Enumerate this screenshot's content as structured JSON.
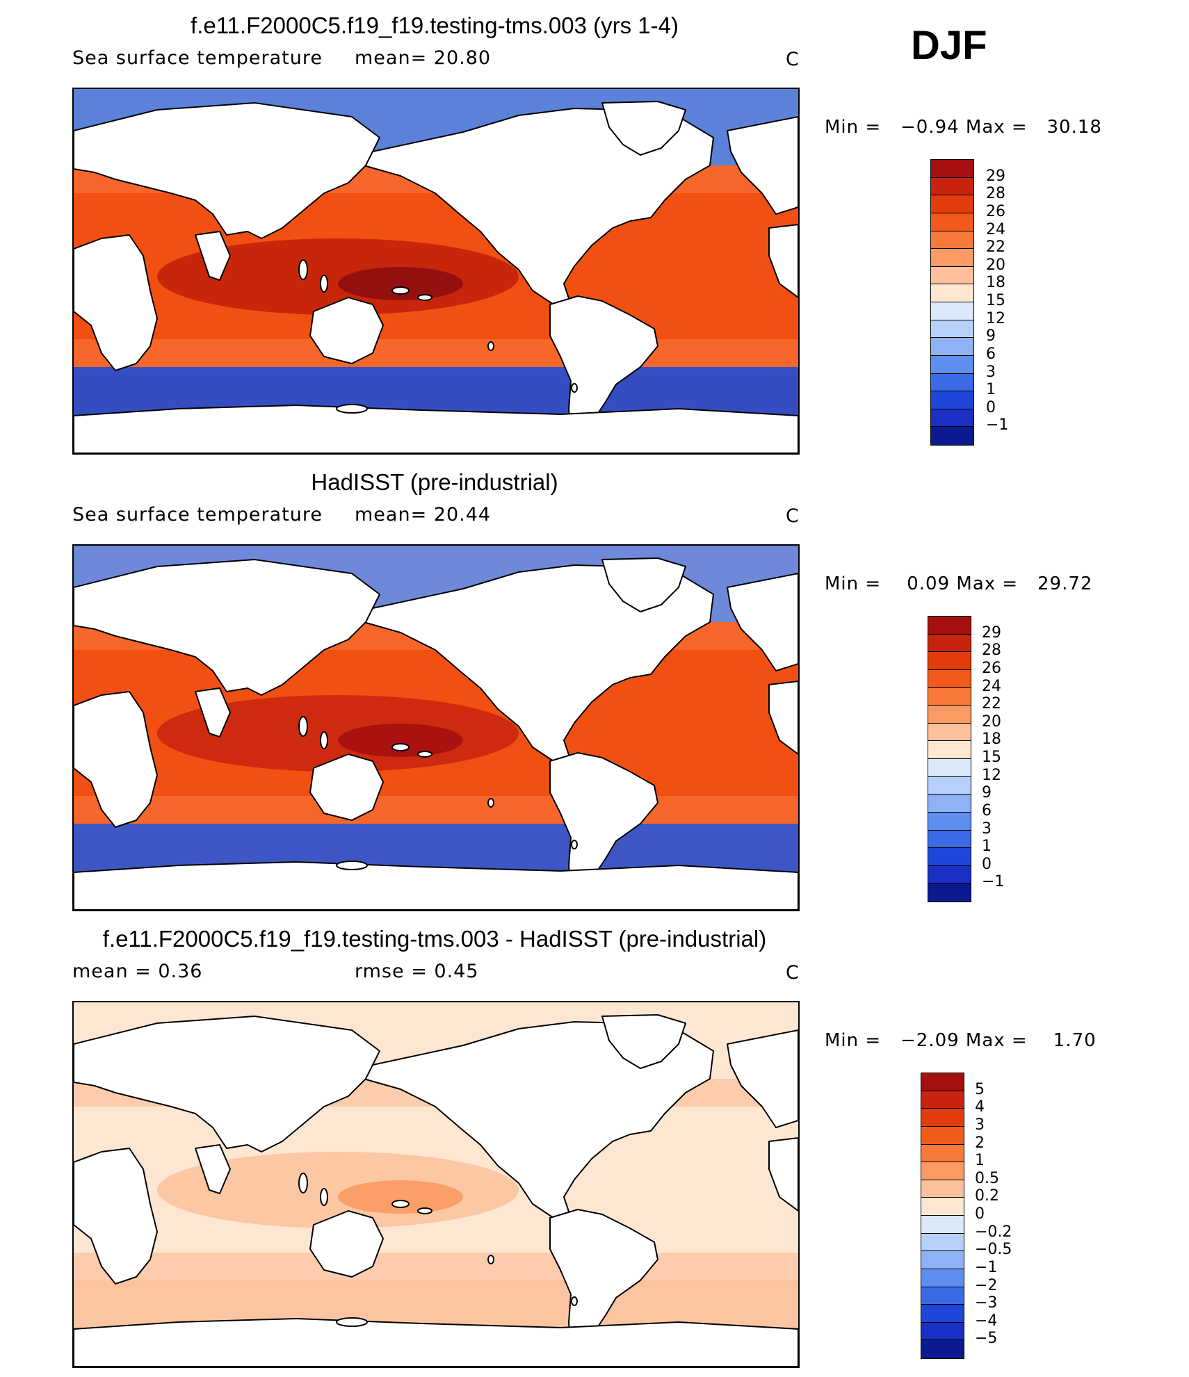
{
  "season": "DJF",
  "panels": [
    {
      "title": "f.e11.F2000C5.f19_f19.testing-tms.003 (yrs 1-4)",
      "variable": "Sea surface temperature",
      "stat1": "mean=   20.80",
      "stat2": "",
      "units": "C",
      "minmax": "Min =   −0.94 Max =   30.18",
      "levels": [
        "29",
        "28",
        "26",
        "24",
        "22",
        "20",
        "18",
        "15",
        "12",
        "9",
        "6",
        "3",
        "1",
        "0",
        "−1"
      ],
      "colors": [
        "#a50f0f",
        "#c8230f",
        "#e23c0d",
        "#f25a1c",
        "#f8793a",
        "#fb9a62",
        "#fcc19b",
        "#fde6d2",
        "#dbe9fb",
        "#b6d0fa",
        "#8fb2f6",
        "#5f8ef1",
        "#3a6ae6",
        "#1e46d8",
        "#1a2fc4",
        "#0b1a8f"
      ],
      "ocean": {
        "west": "#fa7035",
        "pacific": "#f24f12",
        "warmpool": "#c01e0a",
        "core": "#8e0e0e",
        "north": "#4a86ef",
        "south": "#1f4ed6"
      }
    },
    {
      "title": "HadISST (pre-industrial)",
      "variable": "Sea surface temperature",
      "stat1": "mean=   20.44",
      "stat2": "",
      "units": "C",
      "minmax": "Min =    0.09 Max =   29.72",
      "levels": [
        "29",
        "28",
        "26",
        "24",
        "22",
        "20",
        "18",
        "15",
        "12",
        "9",
        "6",
        "3",
        "1",
        "0",
        "−1"
      ],
      "colors": [
        "#a50f0f",
        "#c8230f",
        "#e23c0d",
        "#f25a1c",
        "#f8793a",
        "#fb9a62",
        "#fcc19b",
        "#fde6d2",
        "#dbe9fb",
        "#b6d0fa",
        "#8fb2f6",
        "#5f8ef1",
        "#3a6ae6",
        "#1e46d8",
        "#1a2fc4",
        "#0b1a8f"
      ],
      "ocean": {
        "west": "#fa7035",
        "pacific": "#f24f12",
        "warmpool": "#c8230f",
        "core": "#a50f0f",
        "north": "#5f8ef1",
        "south": "#2a56d8"
      }
    },
    {
      "title": "f.e11.F2000C5.f19_f19.testing-tms.003 - HadISST (pre-industrial)",
      "variable": "",
      "stat1": "mean =    0.36",
      "stat2": "rmse =    0.45",
      "units": "C",
      "minmax": "Min =   −2.09 Max =    1.70",
      "levels": [
        "5",
        "4",
        "3",
        "2",
        "1",
        "0.5",
        "0.2",
        "0",
        "−0.2",
        "−0.5",
        "−1",
        "−2",
        "−3",
        "−4",
        "−5"
      ],
      "colors": [
        "#a50f0f",
        "#c8230f",
        "#e23c0d",
        "#f25a1c",
        "#f8793a",
        "#fb9a62",
        "#fcc19b",
        "#fde6d2",
        "#dbe9fb",
        "#b6d0fa",
        "#8fb2f6",
        "#5f8ef1",
        "#3a6ae6",
        "#1e46d8",
        "#1a2fc4",
        "#0b1a8f"
      ],
      "ocean": {
        "west": "#fcc19b",
        "pacific": "#fde6d2",
        "warmpool": "#fcc19b",
        "core": "#fb9a62",
        "north": "#fde6d2",
        "south": "#fcc19b"
      }
    }
  ]
}
